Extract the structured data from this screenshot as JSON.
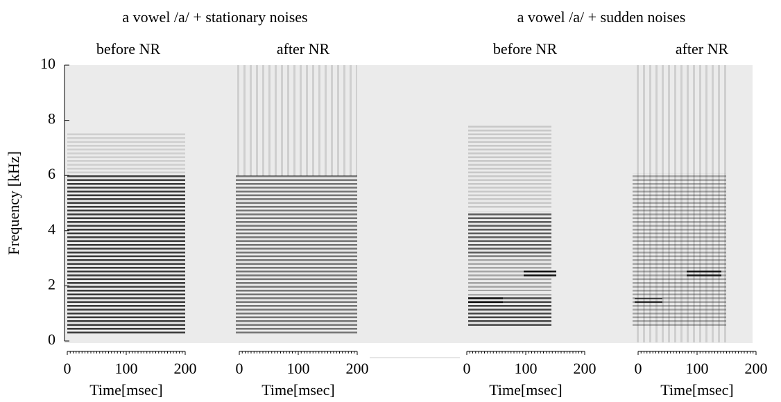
{
  "chart_data": {
    "type": "spectrogram",
    "ylabel": "Frequency [kHz]",
    "ylim": [
      0,
      10
    ],
    "yticks": [
      0,
      2,
      4,
      6,
      8,
      10
    ],
    "groups": [
      {
        "title": "a vowel /a/ +  stationary noises"
      },
      {
        "title": "a vowel /a/ +  sudden noises"
      }
    ],
    "panels": [
      {
        "title": "before NR",
        "xlabel": "Time[msec]",
        "xlim": [
          0,
          200
        ],
        "xticks": [
          0,
          100,
          200
        ]
      },
      {
        "title": "after NR",
        "xlabel": "Time[msec]",
        "xlim": [
          0,
          200
        ],
        "xticks": [
          0,
          100,
          200
        ]
      },
      {
        "title": "before NR",
        "xlabel": "Time[msec]",
        "xlim": [
          0,
          200
        ],
        "xticks": [
          0,
          100,
          200
        ]
      },
      {
        "title": "after NR",
        "xlabel": "Time[msec]",
        "xlim": [
          0,
          200
        ],
        "xticks": [
          0,
          100,
          200
        ]
      }
    ]
  }
}
